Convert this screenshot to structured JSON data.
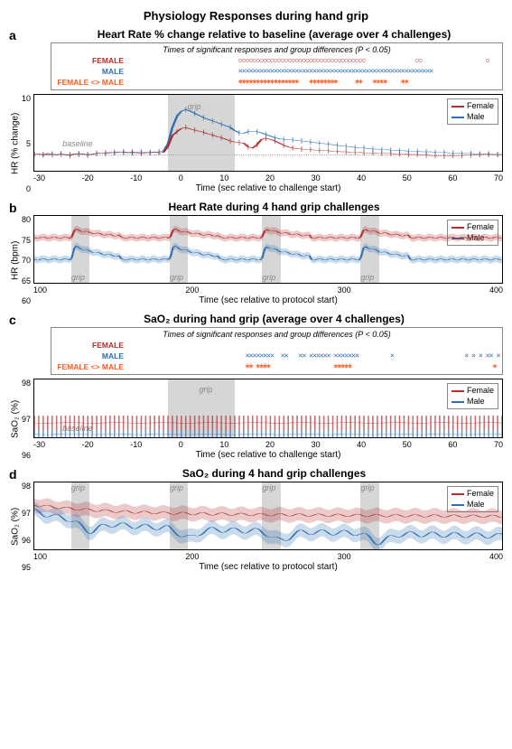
{
  "main_title": "Physiology Responses during hand grip",
  "colors": {
    "female": "#b32d2d",
    "female_band": "rgba(179,45,45,0.25)",
    "male": "#2d6fb3",
    "male_band": "rgba(45,111,179,0.25)",
    "sig_diff": "#ff5a1f",
    "grip": "rgba(180,180,180,0.55)",
    "axis": "#000000",
    "grid": "#dddddd"
  },
  "legend": {
    "female": "Female",
    "male": "Male"
  },
  "sig_box_title": "Times of significant responses and group differences (P < 0.05)",
  "sig_labels": {
    "female": "FEMALE",
    "male": "MALE",
    "diff": "FEMALE <> MALE"
  },
  "panel_a": {
    "letter": "a",
    "title": "Heart Rate % change relative to baseline (average over 4 challenges)",
    "ylabel": "HR (% change)",
    "xlabel": "Time (sec relative to challenge start)",
    "xlim": [
      -30,
      75
    ],
    "xtick_step": 10,
    "ylim": [
      -3,
      11
    ],
    "yticks": [
      0,
      5,
      10
    ],
    "grip_window": [
      0,
      15
    ],
    "baseline_annot": "baseline",
    "grip_annot": "grip",
    "sig": {
      "female_marker": "○",
      "male_marker": "×",
      "diff_marker": "✶",
      "female_times": [
        2,
        3,
        4,
        5,
        6,
        7,
        8,
        9,
        10,
        11,
        12,
        13,
        14,
        15,
        16,
        17,
        18,
        19,
        20,
        21,
        22,
        23,
        24,
        25,
        26,
        27,
        28,
        29,
        30,
        31,
        32,
        33,
        34,
        35,
        36,
        37,
        52,
        53,
        72
      ],
      "male_times": [
        2,
        3,
        4,
        5,
        6,
        7,
        8,
        9,
        10,
        11,
        12,
        13,
        14,
        15,
        16,
        17,
        18,
        19,
        20,
        21,
        22,
        23,
        24,
        25,
        26,
        27,
        28,
        29,
        30,
        31,
        32,
        33,
        34,
        35,
        36,
        37,
        38,
        39,
        40,
        41,
        42,
        43,
        44,
        45,
        46,
        47,
        48,
        49,
        50,
        51,
        52,
        53,
        54,
        55,
        56
      ],
      "diff_times": [
        2,
        3,
        4,
        5,
        6,
        7,
        8,
        9,
        10,
        11,
        12,
        13,
        14,
        15,
        16,
        17,
        18,
        22,
        23,
        24,
        25,
        26,
        27,
        28,
        29,
        35,
        36,
        40,
        41,
        42,
        43,
        48,
        49
      ]
    },
    "female_series": [
      0,
      0.1,
      -0.1,
      0.2,
      0,
      -0.1,
      0.1,
      0,
      -0.2,
      0.1,
      0,
      0.1,
      -0.1,
      0,
      0.2,
      0.3,
      0.2,
      0.3,
      0.4,
      0.5,
      0.4,
      0.3,
      0.5,
      0.3,
      0.2,
      0.3,
      0.4,
      0.5,
      0.3,
      0.4,
      1.5,
      3.5,
      4.2,
      4.8,
      5.0,
      4.7,
      4.5,
      4.3,
      4.1,
      3.8,
      3.6,
      3.3,
      3.1,
      2.8,
      2.5,
      2.3,
      2.2,
      2.1,
      1.4,
      1.2,
      1.8,
      2.8,
      3.0,
      2.8,
      2.5,
      2.1,
      1.7,
      1.4,
      1.2,
      1.1,
      1.0,
      0.9,
      0.9,
      0.8,
      0.8,
      0.7,
      0.7,
      0.6,
      0.6,
      0.5,
      0.5,
      0.4,
      0.4,
      0.4,
      0.3,
      0.3,
      0.3,
      0.2,
      0.2,
      0.2,
      0.2,
      0.1,
      0.1,
      0.1,
      0.0,
      0.0,
      0.0,
      -0.1,
      -0.1,
      -0.2,
      -0.2,
      -0.3,
      -0.3,
      -0.3,
      -0.2,
      -0.2,
      -0.2,
      -0.1,
      -0.1,
      0.0,
      0.0,
      0.0,
      0.1,
      0.0,
      0.0,
      -0.1
    ],
    "male_series": [
      0,
      0.1,
      0.0,
      -0.1,
      0.1,
      0.0,
      0.1,
      -0.1,
      0.0,
      0.1,
      0.2,
      0.1,
      0.0,
      0.1,
      0.2,
      0.3,
      0.3,
      0.4,
      0.3,
      0.4,
      0.5,
      0.4,
      0.3,
      0.4,
      0.5,
      0.4,
      0.3,
      0.4,
      0.5,
      0.6,
      2.0,
      5.0,
      7.0,
      8.0,
      8.3,
      8.0,
      7.6,
      7.2,
      6.8,
      6.5,
      6.2,
      5.9,
      5.6,
      5.3,
      5.0,
      4.4,
      4.0,
      3.9,
      4.2,
      4.3,
      4.2,
      4.0,
      3.7,
      3.4,
      3.1,
      2.9,
      2.8,
      2.7,
      2.7,
      2.6,
      2.5,
      2.4,
      2.3,
      2.2,
      2.1,
      2.0,
      1.9,
      1.8,
      1.7,
      1.6,
      1.5,
      1.4,
      1.3,
      1.2,
      1.2,
      1.1,
      1.0,
      1.0,
      0.9,
      0.9,
      0.8,
      0.8,
      0.7,
      0.7,
      0.6,
      0.6,
      0.6,
      0.5,
      0.5,
      0.5,
      0.4,
      0.4,
      0.4,
      0.3,
      0.3,
      0.3,
      0.2,
      0.2,
      0.2,
      0.1,
      0.1,
      0.1,
      0.0,
      0.0,
      0.0,
      0.0
    ],
    "sem": 0.5
  },
  "panel_b": {
    "letter": "b",
    "title": "Heart Rate during 4 hand grip challenges",
    "ylabel": "HR (bpm)",
    "xlabel": "Time (sec relative to protocol start)",
    "xlim": [
      40,
      420
    ],
    "xtick_step": 100,
    "xticks": [
      100,
      200,
      300,
      400
    ],
    "ylim": [
      60,
      80
    ],
    "yticks": [
      60,
      65,
      70,
      75,
      80
    ],
    "grip_windows": [
      [
        70,
        85
      ],
      [
        150,
        165
      ],
      [
        225,
        240
      ],
      [
        305,
        320
      ]
    ],
    "grip_annot": "grip",
    "female_base": 73.5,
    "female_peak": 76.0,
    "male_base": 67.0,
    "male_peak": 71.0,
    "sem": 1.0
  },
  "panel_c": {
    "letter": "c",
    "title": "SaO₂ during hand grip (average over 4 challenges)",
    "ylabel": "SaO₂ (%)",
    "xlabel": "Time (sec relative to challenge start)",
    "xlim": [
      -30,
      75
    ],
    "xtick_step": 10,
    "ylim": [
      96,
      98
    ],
    "yticks": [
      96,
      97,
      98
    ],
    "grip_window": [
      0,
      15
    ],
    "baseline_annot": "baseline",
    "grip_annot": "grip",
    "female_mean": 96.5,
    "female_sem": 0.25,
    "male_mean": 96.1,
    "male_sem": 0.15,
    "sig": {
      "female_marker": "○",
      "male_marker": "×",
      "diff_marker": "✶",
      "female_times": [],
      "male_times": [
        4,
        5,
        6,
        7,
        8,
        9,
        10,
        11,
        14,
        15,
        19,
        20,
        22,
        23,
        24,
        25,
        26,
        27,
        29,
        30,
        31,
        32,
        33,
        34,
        35,
        45,
        66,
        68,
        70,
        72,
        73,
        75
      ],
      "diff_times": [
        4,
        5,
        7,
        8,
        9,
        10,
        29,
        30,
        31,
        32,
        33,
        74
      ]
    }
  },
  "panel_d": {
    "letter": "d",
    "title": "SaO₂ during 4 hand grip challenges",
    "ylabel": "SaO₂ (%)",
    "xlabel": "Time (sec relative to protocol start)",
    "xlim": [
      40,
      420
    ],
    "xtick_step": 100,
    "xticks": [
      100,
      200,
      300,
      400
    ],
    "ylim": [
      95,
      98
    ],
    "yticks": [
      95,
      96,
      97,
      98
    ],
    "grip_windows": [
      [
        70,
        85
      ],
      [
        150,
        165
      ],
      [
        225,
        240
      ],
      [
        305,
        320
      ]
    ],
    "grip_annot": "grip",
    "female_base": 96.6,
    "male_base": 96.0,
    "sem": 0.3
  }
}
